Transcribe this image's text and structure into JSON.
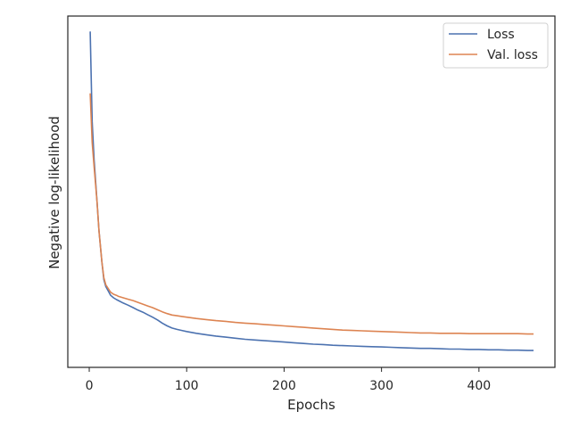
{
  "chart_data": {
    "type": "line",
    "title": "",
    "xlabel": "Epochs",
    "ylabel": "Negative log-likelihood",
    "xlim": [
      -22,
      478
    ],
    "ylim": [
      0,
      1
    ],
    "x_ticks": [
      0,
      100,
      200,
      300,
      400
    ],
    "y_ticks": [],
    "grid": false,
    "legend": "top-right",
    "series": [
      {
        "name": "Loss",
        "color": "#4c72b0",
        "x": [
          1,
          3,
          5,
          8,
          10,
          13,
          15,
          17,
          20,
          22,
          25,
          28,
          30,
          35,
          40,
          45,
          50,
          55,
          60,
          65,
          70,
          75,
          80,
          85,
          90,
          95,
          100,
          110,
          120,
          130,
          140,
          150,
          160,
          170,
          180,
          190,
          200,
          210,
          220,
          230,
          240,
          250,
          260,
          270,
          280,
          290,
          300,
          310,
          320,
          330,
          340,
          350,
          360,
          370,
          380,
          390,
          400,
          410,
          420,
          430,
          440,
          450,
          456
        ],
        "values": [
          0.956,
          0.7,
          0.59,
          0.47,
          0.39,
          0.3,
          0.25,
          0.23,
          0.215,
          0.205,
          0.198,
          0.193,
          0.19,
          0.183,
          0.177,
          0.17,
          0.163,
          0.157,
          0.15,
          0.143,
          0.135,
          0.126,
          0.118,
          0.112,
          0.108,
          0.105,
          0.102,
          0.097,
          0.093,
          0.089,
          0.086,
          0.083,
          0.08,
          0.078,
          0.076,
          0.074,
          0.072,
          0.07,
          0.068,
          0.066,
          0.065,
          0.063,
          0.062,
          0.061,
          0.06,
          0.059,
          0.058,
          0.057,
          0.056,
          0.055,
          0.054,
          0.054,
          0.053,
          0.052,
          0.052,
          0.051,
          0.051,
          0.05,
          0.05,
          0.049,
          0.049,
          0.048,
          0.048
        ]
      },
      {
        "name": "Val. loss",
        "color": "#dd8452",
        "x": [
          1,
          3,
          5,
          8,
          10,
          13,
          15,
          17,
          20,
          22,
          25,
          28,
          30,
          35,
          40,
          45,
          50,
          55,
          60,
          65,
          70,
          75,
          80,
          85,
          90,
          95,
          100,
          110,
          120,
          130,
          140,
          150,
          160,
          170,
          180,
          190,
          200,
          210,
          220,
          230,
          240,
          250,
          260,
          270,
          280,
          290,
          300,
          310,
          320,
          330,
          340,
          350,
          360,
          370,
          380,
          390,
          400,
          410,
          420,
          430,
          440,
          450,
          456
        ],
        "values": [
          0.78,
          0.64,
          0.57,
          0.47,
          0.39,
          0.3,
          0.255,
          0.235,
          0.222,
          0.214,
          0.208,
          0.205,
          0.202,
          0.198,
          0.194,
          0.19,
          0.185,
          0.18,
          0.175,
          0.17,
          0.164,
          0.158,
          0.153,
          0.149,
          0.147,
          0.145,
          0.143,
          0.139,
          0.136,
          0.133,
          0.131,
          0.128,
          0.126,
          0.124,
          0.122,
          0.12,
          0.118,
          0.116,
          0.114,
          0.112,
          0.11,
          0.108,
          0.106,
          0.105,
          0.104,
          0.103,
          0.102,
          0.101,
          0.1,
          0.099,
          0.098,
          0.098,
          0.097,
          0.097,
          0.097,
          0.096,
          0.096,
          0.096,
          0.096,
          0.096,
          0.096,
          0.095,
          0.095
        ]
      }
    ]
  }
}
